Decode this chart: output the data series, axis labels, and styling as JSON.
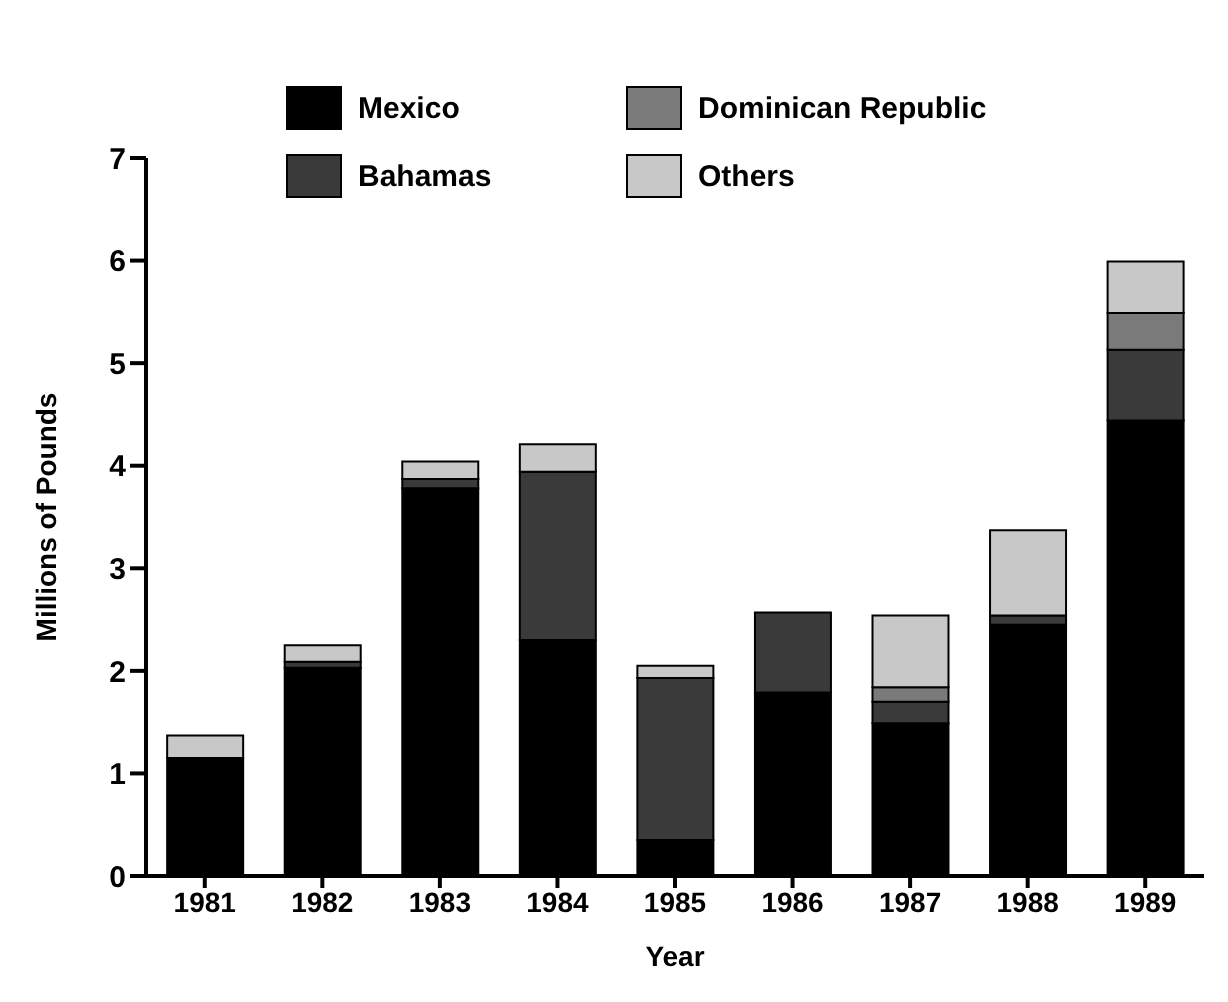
{
  "chart_data": {
    "type": "bar",
    "stacked": true,
    "xlabel": "Year",
    "ylabel": "Millions of Pounds",
    "categories": [
      "1981",
      "1982",
      "1983",
      "1984",
      "1985",
      "1986",
      "1987",
      "1988",
      "1989"
    ],
    "series": [
      {
        "name": "Mexico",
        "color": "#000000",
        "values": [
          1.15,
          2.03,
          3.78,
          2.3,
          0.35,
          1.79,
          1.49,
          2.45,
          4.44
        ]
      },
      {
        "name": "Bahamas",
        "color": "#3a3a3a",
        "values": [
          0,
          0.06,
          0.09,
          1.64,
          1.58,
          0.78,
          0.21,
          0.09,
          0.69
        ]
      },
      {
        "name": "Dominican Republic",
        "color": "#7a7a7a",
        "values": [
          0,
          0,
          0,
          0,
          0,
          0,
          0.14,
          0,
          0.36
        ]
      },
      {
        "name": "Others",
        "color": "#c8c8c8",
        "values": [
          0.22,
          0.16,
          0.17,
          0.27,
          0.12,
          0,
          0.7,
          0.83,
          0.5
        ]
      }
    ],
    "ylim": [
      0,
      7
    ],
    "yticks": [
      0,
      1,
      2,
      3,
      4,
      5,
      6,
      7
    ],
    "grid": false,
    "legend": "top"
  }
}
